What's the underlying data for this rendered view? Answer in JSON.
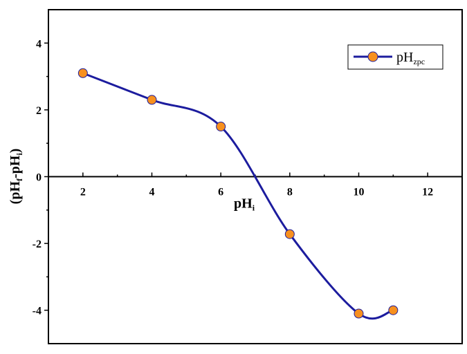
{
  "chart_data": {
    "type": "line",
    "x_label": [
      "pH",
      "i"
    ],
    "y_label": [
      "(pH",
      "f",
      "-pH",
      "i",
      ")"
    ],
    "x": [
      2,
      4,
      6,
      8,
      10,
      11
    ],
    "series": [
      {
        "name": [
          "pH",
          "zpc"
        ],
        "color": "#1c1c9e",
        "marker_color": "#f7901e",
        "values": [
          3.1,
          2.3,
          1.5,
          -1.72,
          -4.1,
          -4.0
        ]
      }
    ],
    "xlim": [
      1,
      13
    ],
    "ylim": [
      -5,
      5
    ],
    "xticks": [
      2,
      4,
      6,
      8,
      10,
      12
    ],
    "yticks": [
      -4,
      -2,
      0,
      2,
      4
    ],
    "legend": "upper right"
  }
}
